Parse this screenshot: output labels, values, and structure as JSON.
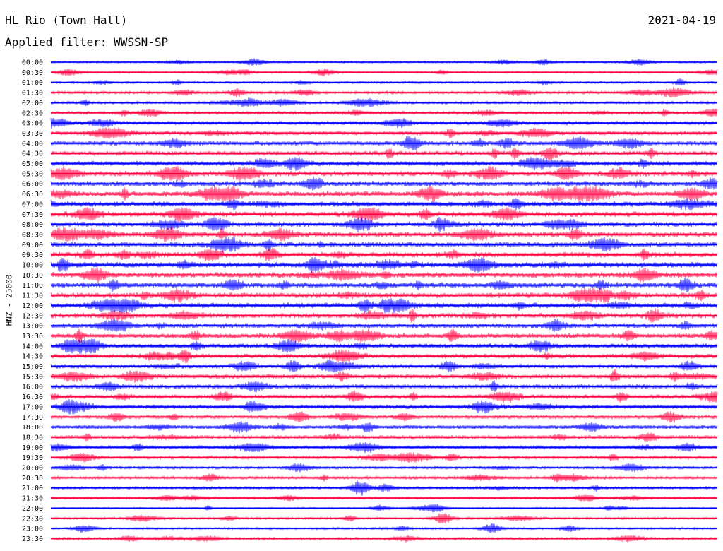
{
  "header": {
    "station": "HL Rio (Town Hall)",
    "date": "2021-04-19",
    "filter": "Applied filter: WWSSN-SP"
  },
  "chart_data": {
    "type": "line",
    "title": "HL Rio (Town Hall)",
    "subtitle": "Applied filter: WWSSN-SP",
    "ylabel": "HNZ - 25000",
    "xlabel": "",
    "rows": [
      "00:00",
      "00:30",
      "01:00",
      "01:30",
      "02:00",
      "02:30",
      "03:00",
      "03:30",
      "04:00",
      "04:30",
      "05:00",
      "05:30",
      "06:00",
      "06:30",
      "07:00",
      "07:30",
      "08:00",
      "08:30",
      "09:00",
      "09:30",
      "10:00",
      "10:30",
      "11:00",
      "11:30",
      "12:00",
      "12:30",
      "13:00",
      "13:30",
      "14:00",
      "14:30",
      "15:00",
      "15:30",
      "16:00",
      "16:30",
      "17:00",
      "17:30",
      "18:00",
      "18:30",
      "19:00",
      "19:30",
      "20:00",
      "20:30",
      "21:00",
      "21:30",
      "22:00",
      "22:30",
      "23:00",
      "23:30"
    ],
    "trace_colors": [
      "#0000ff",
      "#ff0040"
    ],
    "activity_level": [
      0.25,
      0.28,
      0.35,
      0.42,
      0.38,
      0.48,
      0.55,
      0.6,
      0.75,
      0.8,
      0.82,
      0.88,
      0.9,
      0.9,
      0.9,
      0.88,
      0.9,
      0.9,
      0.9,
      0.92,
      0.95,
      0.95,
      0.95,
      0.92,
      0.9,
      0.9,
      0.85,
      0.82,
      0.8,
      0.78,
      0.75,
      0.72,
      0.72,
      0.68,
      0.65,
      0.6,
      0.62,
      0.6,
      0.55,
      0.5,
      0.45,
      0.42,
      0.4,
      0.3,
      0.2,
      0.32,
      0.3,
      0.38
    ],
    "grid": false
  }
}
